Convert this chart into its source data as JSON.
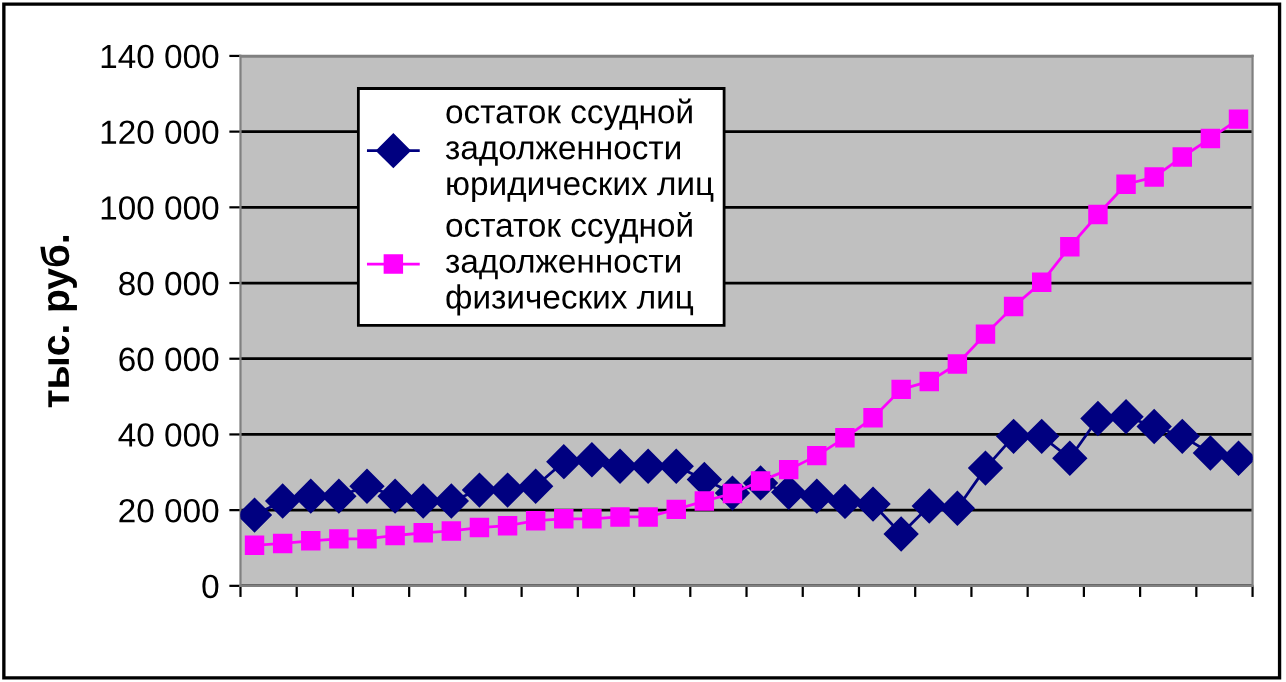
{
  "chart_data": {
    "type": "line",
    "ylabel": "тыс. руб.",
    "categories": [
      null,
      null,
      null,
      null,
      null,
      null,
      null,
      null,
      null,
      null,
      null,
      null,
      null,
      null,
      null,
      null,
      null,
      null,
      null,
      null,
      null,
      null,
      null,
      null,
      null,
      null,
      null,
      null,
      null,
      null,
      null,
      null,
      null,
      null,
      null,
      null
    ],
    "series": [
      {
        "name": "остаток ссудной задолженности юридических лиц",
        "color": "#000080",
        "marker": "diamond",
        "values": [
          18700,
          22400,
          23700,
          23700,
          26300,
          23700,
          22400,
          22400,
          25300,
          25300,
          26300,
          32800,
          33300,
          31600,
          31600,
          31600,
          28100,
          24500,
          27200,
          24700,
          23700,
          22300,
          21600,
          13700,
          21100,
          20500,
          31100,
          39500,
          39500,
          33700,
          44200,
          44700,
          42100,
          39500,
          35100,
          33700
        ]
      },
      {
        "name": "остаток ссудной задолженности физических лиц",
        "color": "#ff00ff",
        "marker": "square",
        "values": [
          10700,
          11200,
          11900,
          12400,
          12400,
          13300,
          14000,
          14500,
          15400,
          15900,
          17200,
          17700,
          17700,
          18200,
          18200,
          20200,
          22400,
          24400,
          27700,
          30700,
          34400,
          39100,
          44400,
          51900,
          54000,
          58600,
          66500,
          73800,
          80200,
          89600,
          98100,
          106100,
          108000,
          113300,
          118200,
          123300
        ]
      }
    ],
    "ylim": [
      0,
      140000
    ],
    "yticks": [
      0,
      {
        "value": 20000,
        "label": "20 000"
      },
      {
        "value": 40000,
        "label": "40 000"
      },
      {
        "value": 60000,
        "label": "60 000"
      },
      {
        "value": 80000,
        "label": "80 000"
      },
      {
        "value": 100000,
        "label": "100 000"
      },
      {
        "value": 120000,
        "label": "120 000"
      },
      {
        "value": 140000,
        "label": "140 000"
      }
    ],
    "grid": "y",
    "legend": "top left",
    "line_style": "solid"
  }
}
